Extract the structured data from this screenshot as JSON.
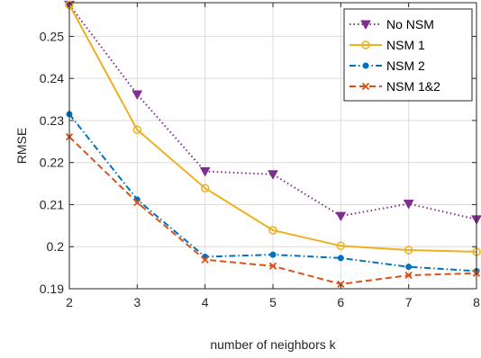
{
  "chart_data": {
    "type": "line",
    "xlabel": "number of neighbors k",
    "ylabel": "RMSE",
    "x": [
      2,
      3,
      4,
      5,
      6,
      7,
      8
    ],
    "xlim": [
      2,
      8
    ],
    "ylim": [
      0.19,
      0.258
    ],
    "xticks": [
      "2",
      "3",
      "4",
      "5",
      "6",
      "7",
      "8"
    ],
    "yticks": [
      0.19,
      0.2,
      0.21,
      0.22,
      0.23,
      0.24,
      0.25
    ],
    "ytick_labels": [
      "0.19",
      "0.2",
      "0.21",
      "0.22",
      "0.23",
      "0.24",
      "0.25"
    ],
    "grid": true,
    "legend_position": "top-right",
    "series": [
      {
        "name": "No NSM",
        "values": [
          0.2575,
          0.2362,
          0.2179,
          0.2172,
          0.2073,
          0.2102,
          0.2065
        ],
        "color": "#7E2F8E",
        "marker": "triangle-down",
        "dash": "dotted"
      },
      {
        "name": "NSM 1",
        "values": [
          0.2575,
          0.2278,
          0.2139,
          0.2039,
          0.2002,
          0.1992,
          0.1988
        ],
        "color": "#EDB120",
        "marker": "circle",
        "dash": "solid"
      },
      {
        "name": "NSM 2",
        "values": [
          0.2315,
          0.2112,
          0.1976,
          0.1981,
          0.1973,
          0.1952,
          0.1942
        ],
        "color": "#0072BD",
        "marker": "dot",
        "dash": "dashdot"
      },
      {
        "name": "NSM 1&2",
        "values": [
          0.2261,
          0.2105,
          0.1969,
          0.1954,
          0.1911,
          0.1932,
          0.1937
        ],
        "color": "#D95319",
        "marker": "x",
        "dash": "dashed"
      }
    ]
  }
}
